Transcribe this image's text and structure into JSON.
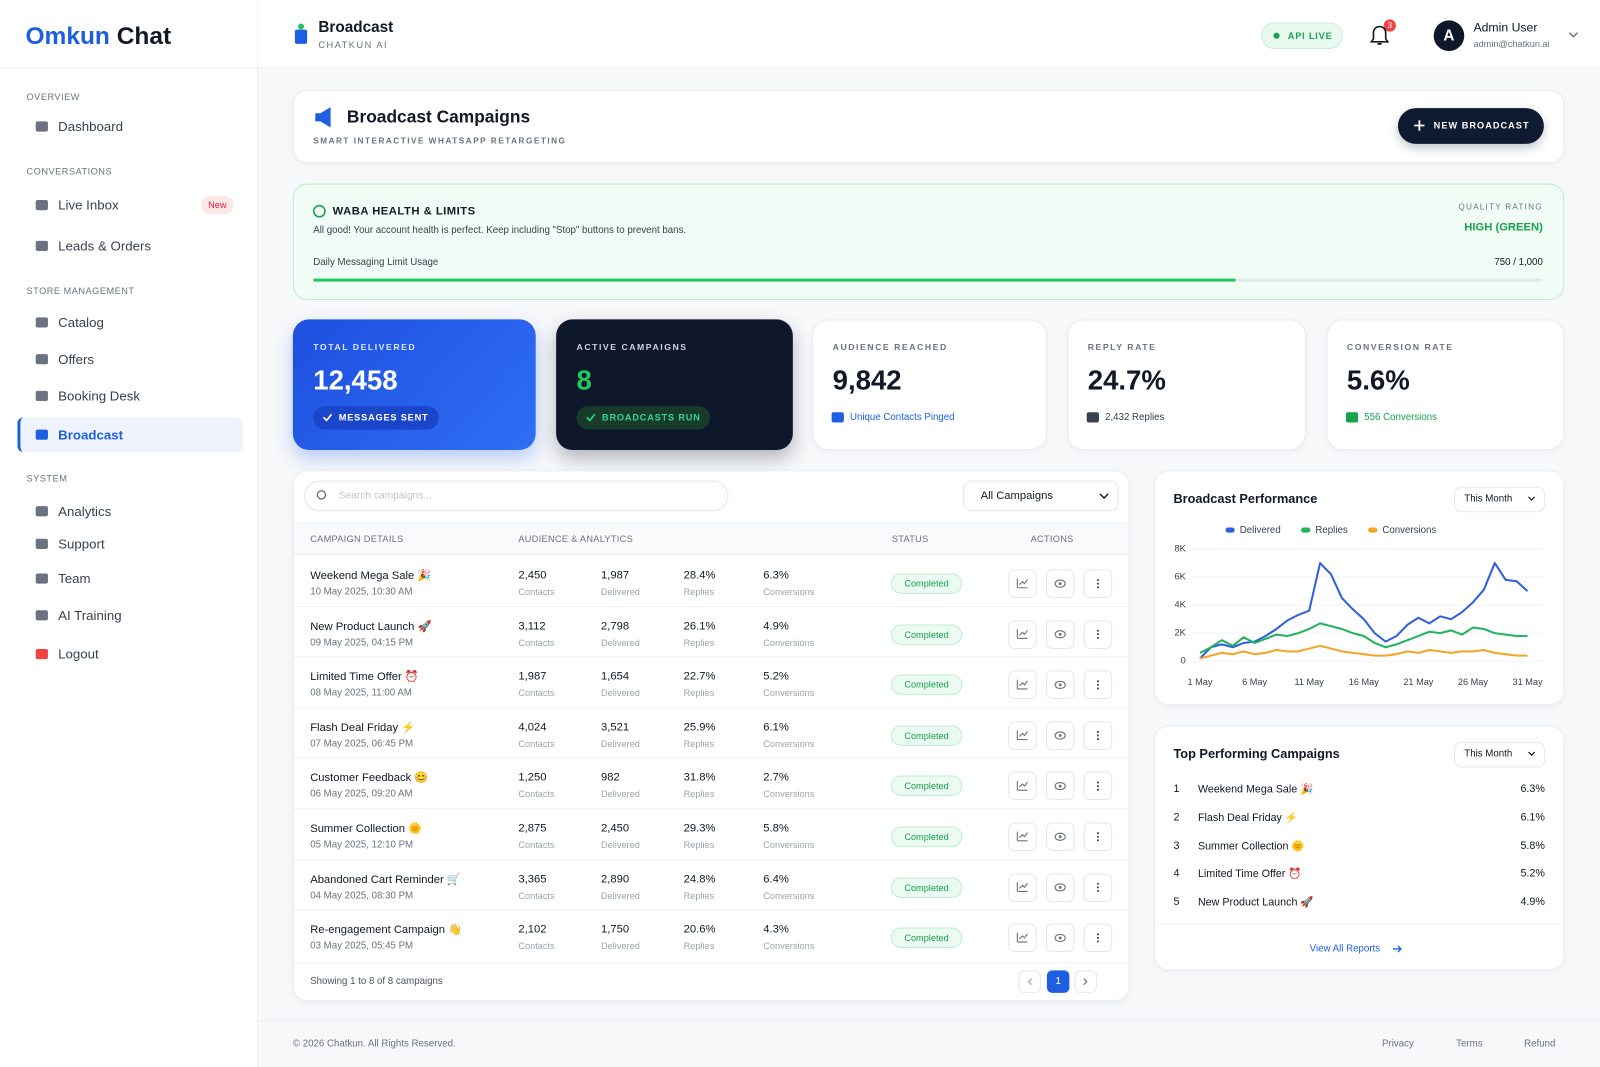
{
  "sidebar": {
    "logo": {
      "primary": "Omkun",
      "secondary": "Chat"
    },
    "sections": [
      {
        "title": "OVERVIEW",
        "items": [
          {
            "label": "Dashboard"
          }
        ]
      },
      {
        "title": "CONVERSATIONS",
        "items": [
          {
            "label": "Live Inbox",
            "badge": "New"
          },
          {
            "label": "Leads & Orders"
          }
        ]
      },
      {
        "title": "STORE MANAGEMENT",
        "items": [
          {
            "label": "Catalog"
          },
          {
            "label": "Offers"
          },
          {
            "label": "Booking Desk"
          },
          {
            "label": "Broadcast",
            "active": true
          }
        ]
      },
      {
        "title": "SYSTEM",
        "items": [
          {
            "label": "Analytics"
          },
          {
            "label": "Support"
          },
          {
            "label": "Team"
          },
          {
            "label": "AI Training"
          }
        ]
      }
    ],
    "logout": "Logout"
  },
  "topbar": {
    "title": "Broadcast",
    "subtitle": "CHATKUN AI",
    "status": "API LIVE",
    "notifications": "3",
    "avatar": "A",
    "user_name": "Admin User",
    "user_email": "admin@chatkun.ai"
  },
  "header": {
    "title": "Broadcast Campaigns",
    "subtitle": "SMART INTERACTIVE WHATSAPP RETARGETING",
    "button": "NEW BROADCAST"
  },
  "waba": {
    "title": "WABA HEALTH & LIMITS",
    "message": "All good! Your account health is perfect. Keep including \"Stop\" buttons to prevent bans.",
    "quality_label": "QUALITY RATING",
    "quality_value": "HIGH (GREEN)",
    "limit_label": "Daily Messaging Limit Usage",
    "limit_usage": {
      "used": 750,
      "total": 1000,
      "label": "750 / 1,000"
    }
  },
  "stats": [
    {
      "label": "TOTAL DELIVERED",
      "value": "12,458",
      "note": "MESSAGES SENT"
    },
    {
      "label": "ACTIVE CAMPAIGNS",
      "value": "8",
      "note": "BROADCASTS RUN"
    },
    {
      "label": "AUDIENCE REACHED",
      "value": "9,842",
      "note": "Unique Contacts Pinged"
    },
    {
      "label": "REPLY RATE",
      "value": "24.7%",
      "note": "2,432 Replies"
    },
    {
      "label": "CONVERSION RATE",
      "value": "5.6%",
      "note": "556 Conversions"
    }
  ],
  "campaigns": {
    "search_placeholder": "Search campaigns...",
    "filter": "All Campaigns",
    "columns": [
      "CAMPAIGN DETAILS",
      "AUDIENCE & ANALYTICS",
      "STATUS",
      "ACTIONS"
    ],
    "metric_labels": [
      "Contacts",
      "Delivered",
      "Replies",
      "Conversions"
    ],
    "rows": [
      {
        "name": "Weekend Mega Sale 🎉",
        "date": "10 May 2025, 10:30 AM",
        "metrics": [
          "2,450",
          "1,987",
          "28.4%",
          "6.3%"
        ],
        "status": "Completed"
      },
      {
        "name": "New Product Launch 🚀",
        "date": "09 May 2025, 04:15 PM",
        "metrics": [
          "3,112",
          "2,798",
          "26.1%",
          "4.9%"
        ],
        "status": "Completed"
      },
      {
        "name": "Limited Time Offer ⏰",
        "date": "08 May 2025, 11:00 AM",
        "metrics": [
          "1,987",
          "1,654",
          "22.7%",
          "5.2%"
        ],
        "status": "Completed"
      },
      {
        "name": "Flash Deal Friday ⚡",
        "date": "07 May 2025, 06:45 PM",
        "metrics": [
          "4,024",
          "3,521",
          "25.9%",
          "6.1%"
        ],
        "status": "Completed"
      },
      {
        "name": "Customer Feedback 😊",
        "date": "06 May 2025, 09:20 AM",
        "metrics": [
          "1,250",
          "982",
          "31.8%",
          "2.7%"
        ],
        "status": "Completed"
      },
      {
        "name": "Summer Collection 🌞",
        "date": "05 May 2025, 12:10 PM",
        "metrics": [
          "2,875",
          "2,450",
          "29.3%",
          "5.8%"
        ],
        "status": "Completed"
      },
      {
        "name": "Abandoned Cart Reminder 🛒",
        "date": "04 May 2025, 08:30 PM",
        "metrics": [
          "3,365",
          "2,890",
          "24.8%",
          "6.4%"
        ],
        "status": "Completed"
      },
      {
        "name": "Re-engagement Campaign 👋",
        "date": "03 May 2025, 05:45 PM",
        "metrics": [
          "2,102",
          "1,750",
          "20.6%",
          "4.3%"
        ],
        "status": "Completed"
      }
    ],
    "summary": "Showing 1 to 8 of 8 campaigns",
    "page": "1"
  },
  "chart_data": {
    "type": "line",
    "title": "Broadcast Performance",
    "period": "This Month",
    "categories": [
      "1 May",
      null,
      null,
      null,
      null,
      "6 May",
      null,
      null,
      null,
      null,
      "11 May",
      null,
      null,
      null,
      null,
      "16 May",
      null,
      null,
      null,
      null,
      "21 May",
      null,
      null,
      null,
      null,
      "26 May",
      null,
      null,
      null,
      null,
      "31 May"
    ],
    "series": [
      {
        "name": "Delivered",
        "color": "#2f5fe0",
        "values": [
          200,
          1000,
          1200,
          1000,
          1300,
          1400,
          1800,
          2300,
          2900,
          3300,
          3600,
          7000,
          6200,
          4500,
          3700,
          3000,
          2000,
          1400,
          1800,
          2600,
          3100,
          2700,
          3200,
          3000,
          3500,
          4200,
          5100,
          7000,
          5800,
          5700,
          5000
        ]
      },
      {
        "name": "Replies",
        "color": "#22b35e",
        "values": [
          600,
          1000,
          1500,
          1100,
          1700,
          1300,
          1600,
          1900,
          1800,
          2000,
          2300,
          2700,
          2500,
          2300,
          2000,
          1800,
          1300,
          1000,
          1200,
          1500,
          1800,
          2100,
          2000,
          2200,
          1900,
          2400,
          2300,
          2000,
          1900,
          1800,
          1800
        ]
      },
      {
        "name": "Conversions",
        "color": "#f5a524",
        "values": [
          200,
          400,
          600,
          500,
          700,
          500,
          600,
          800,
          700,
          700,
          900,
          1100,
          900,
          700,
          600,
          500,
          400,
          400,
          500,
          700,
          600,
          800,
          700,
          600,
          700,
          700,
          800,
          600,
          500,
          400,
          400
        ]
      }
    ],
    "ylim": [
      0,
      8000
    ],
    "yticks": [
      0,
      {
        "value": 2000,
        "label": "2K"
      },
      {
        "value": 4000,
        "label": "4K"
      },
      {
        "value": 6000,
        "label": "6K"
      },
      {
        "value": 8000,
        "label": "8K"
      }
    ],
    "grid": true,
    "legend": "top"
  },
  "top_campaigns": {
    "title": "Top Performing Campaigns",
    "period": "This Month",
    "items": [
      {
        "rank": "1",
        "name": "Weekend Mega Sale 🎉",
        "rate": "6.3%"
      },
      {
        "rank": "2",
        "name": "Flash Deal Friday ⚡",
        "rate": "6.1%"
      },
      {
        "rank": "3",
        "name": "Summer Collection 🌞",
        "rate": "5.8%"
      },
      {
        "rank": "4",
        "name": "Limited Time Offer ⏰",
        "rate": "5.2%"
      },
      {
        "rank": "5",
        "name": "New Product Launch 🚀",
        "rate": "4.9%"
      }
    ],
    "link": "View All Reports"
  },
  "footer": {
    "copyright": "© 2026 Chatkun. All Rights Reserved.",
    "links": [
      "Privacy",
      "Terms",
      "Refund"
    ]
  }
}
